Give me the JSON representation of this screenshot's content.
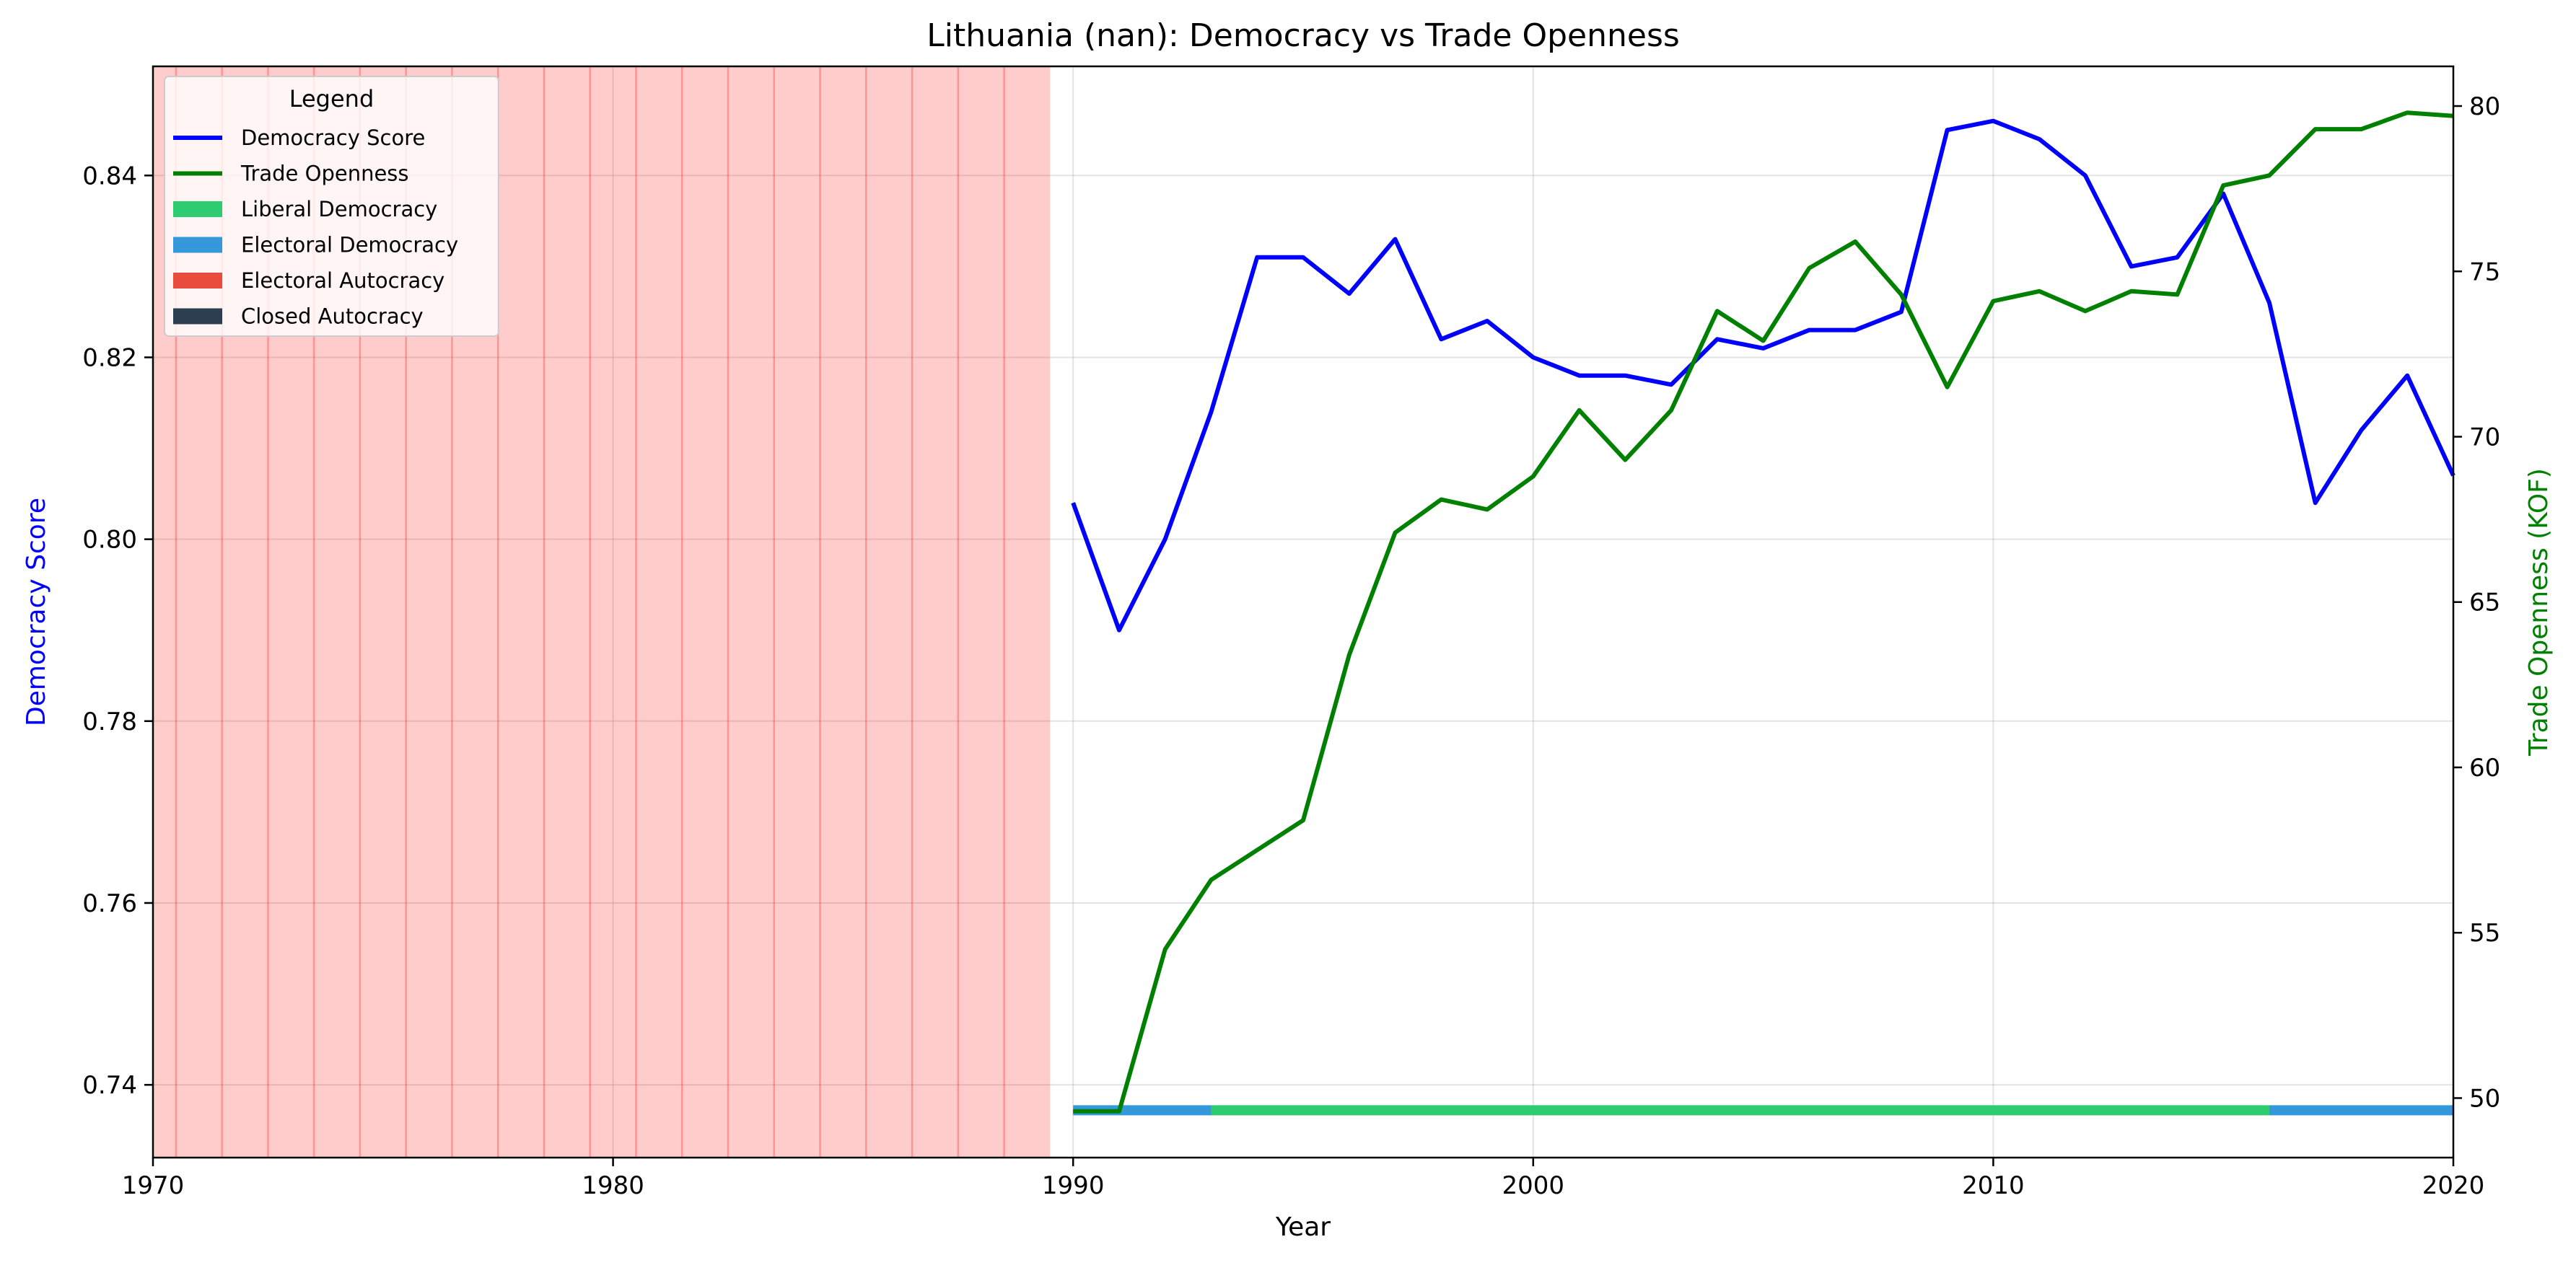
{
  "chart_data": {
    "type": "line",
    "title": "Lithuania (nan): Democracy vs Trade Openness",
    "xlabel": "Year",
    "ylabel_left": "Democracy Score",
    "ylabel_right": "Trade Openness (KOF)",
    "xlim": [
      1970,
      2020
    ],
    "ylim_left": [
      0.732,
      0.852
    ],
    "ylim_right": [
      48.2,
      81.2
    ],
    "x_ticks": [
      "1970",
      "1980",
      "1990",
      "2000",
      "2010",
      "2020"
    ],
    "y_left_ticks": [
      "0.74",
      "0.76",
      "0.78",
      "0.80",
      "0.82",
      "0.84"
    ],
    "y_right_ticks": [
      "50",
      "55",
      "60",
      "65",
      "70",
      "75",
      "80"
    ],
    "grid": true,
    "legend": {
      "title": "Legend",
      "location": "upper-left",
      "entries": [
        {
          "label": "Democracy Score",
          "kind": "line",
          "color": "#0000ff"
        },
        {
          "label": "Trade Openness",
          "kind": "line",
          "color": "#008000"
        },
        {
          "label": "Liberal Democracy",
          "kind": "patch",
          "color": "#2ecc71"
        },
        {
          "label": "Electoral Democracy",
          "kind": "patch",
          "color": "#3498db"
        },
        {
          "label": "Electoral Autocracy",
          "kind": "patch",
          "color": "#e74c3c"
        },
        {
          "label": "Closed Autocracy",
          "kind": "patch",
          "color": "#2c3e50"
        }
      ]
    },
    "series": [
      {
        "name": "Democracy Score",
        "axis": "left",
        "color": "#0000ff",
        "x": [
          1990,
          1991,
          1992,
          1993,
          1994,
          1995,
          1996,
          1997,
          1998,
          1999,
          2000,
          2001,
          2002,
          2003,
          2004,
          2005,
          2006,
          2007,
          2008,
          2009,
          2010,
          2011,
          2012,
          2013,
          2014,
          2015,
          2016,
          2017,
          2018,
          2019,
          2020
        ],
        "y": [
          0.804,
          0.79,
          0.8,
          0.814,
          0.831,
          0.831,
          0.827,
          0.833,
          0.822,
          0.824,
          0.82,
          0.818,
          0.818,
          0.817,
          0.822,
          0.821,
          0.823,
          0.823,
          0.825,
          0.845,
          0.846,
          0.844,
          0.84,
          0.83,
          0.831,
          0.838,
          0.826,
          0.804,
          0.812,
          0.818,
          0.807
        ]
      },
      {
        "name": "Trade Openness",
        "axis": "right",
        "color": "#008000",
        "x": [
          1990,
          1991,
          1992,
          1993,
          1994,
          1995,
          1996,
          1997,
          1998,
          1999,
          2000,
          2001,
          2002,
          2003,
          2004,
          2005,
          2006,
          2007,
          2008,
          2009,
          2010,
          2011,
          2012,
          2013,
          2014,
          2015,
          2016,
          2017,
          2018,
          2019,
          2020
        ],
        "y": [
          49.6,
          49.6,
          54.5,
          56.6,
          57.5,
          58.4,
          63.4,
          67.1,
          68.1,
          67.8,
          68.8,
          70.8,
          69.3,
          70.8,
          73.8,
          72.9,
          75.1,
          75.9,
          74.3,
          71.5,
          74.1,
          74.4,
          73.8,
          74.4,
          74.3,
          77.6,
          77.9,
          79.3,
          79.3,
          79.8,
          79.7
        ]
      }
    ],
    "regime_shading": [
      {
        "regime": "Electoral Autocracy",
        "from": 1970,
        "to": 1989.5,
        "color": "#ff0000",
        "alpha": 0.2,
        "year_lines": [
          1970.5,
          1971.5,
          1972.5,
          1973.5,
          1974.5,
          1975.5,
          1976.5,
          1977.5,
          1978.5,
          1979.5,
          1980.5,
          1981.5,
          1982.5,
          1983.5,
          1984.5,
          1985.5,
          1986.5,
          1987.5,
          1988.5
        ]
      }
    ],
    "regime_bar": [
      {
        "regime": "Electoral Democracy",
        "from": 1990,
        "to": 1993,
        "color": "#3498db"
      },
      {
        "regime": "Liberal Democracy",
        "from": 1993,
        "to": 2016,
        "color": "#2ecc71"
      },
      {
        "regime": "Electoral Democracy",
        "from": 2016,
        "to": 2020,
        "color": "#3498db"
      }
    ],
    "regime_bar_level_left": 0.7372
  }
}
